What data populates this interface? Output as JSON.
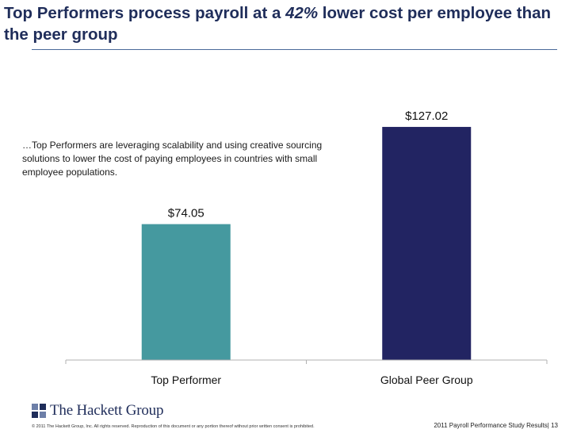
{
  "title": {
    "before": "Top Performers process payroll at a ",
    "highlight": "42%",
    "after": " lower cost per employee than the peer group"
  },
  "note": "…Top Performers are leveraging scalability and using creative sourcing solutions to lower the cost of paying employees in countries with small employee populations.",
  "chart_data": {
    "type": "bar",
    "categories": [
      "Top Performer",
      "Global Peer Group"
    ],
    "values": [
      74.05,
      127.02
    ],
    "value_labels": [
      "$74.05",
      "$127.02"
    ],
    "colors": [
      "#45999f",
      "#222462"
    ],
    "ylim": [
      0,
      140
    ],
    "grid": false,
    "title": "",
    "xlabel": "",
    "ylabel": ""
  },
  "logo": {
    "text": "The Hackett Group",
    "colors": [
      "#6d7fa8",
      "#1f2d5a"
    ]
  },
  "footer": {
    "copyright": "© 2011 The Hackett Group, Inc. All rights reserved. Reproduction of this document or any portion thereof without prior written consent is prohibited.",
    "page": "2011 Payroll Performance Study Results| 13"
  }
}
